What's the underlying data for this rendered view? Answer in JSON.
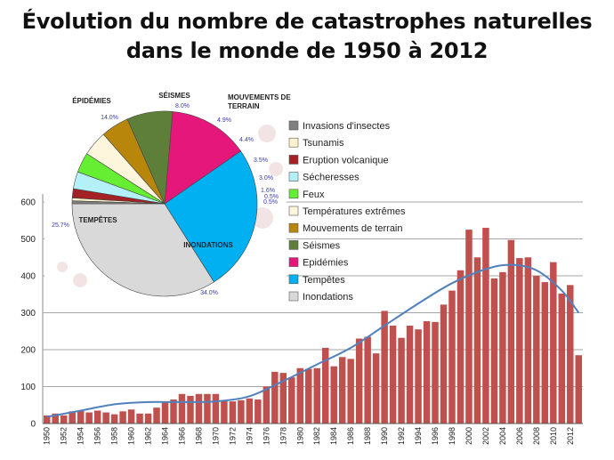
{
  "title_line1": "Évolution du nombre de catastrophes naturelles",
  "title_line2": "dans le monde de 1950 à 2012",
  "chart_data": [
    {
      "type": "bar",
      "ylim": [
        0,
        600
      ],
      "yticks": [
        0,
        100,
        200,
        300,
        400,
        500,
        600
      ],
      "grid": true,
      "bar_color": "#c0504d",
      "trend_color": "#4f81bd",
      "x": [
        1950,
        1951,
        1952,
        1953,
        1954,
        1955,
        1956,
        1957,
        1958,
        1959,
        1960,
        1961,
        1962,
        1963,
        1964,
        1965,
        1966,
        1967,
        1968,
        1969,
        1970,
        1971,
        1972,
        1973,
        1974,
        1975,
        1976,
        1977,
        1978,
        1979,
        1980,
        1981,
        1982,
        1983,
        1984,
        1985,
        1986,
        1987,
        1988,
        1989,
        1990,
        1991,
        1992,
        1993,
        1994,
        1995,
        1996,
        1997,
        1998,
        1999,
        2000,
        2001,
        2002,
        2003,
        2004,
        2005,
        2006,
        2007,
        2008,
        2009,
        2010,
        2011,
        2012,
        2013
      ],
      "xtick_labels": [
        "1950",
        "1952",
        "1954",
        "1956",
        "1958",
        "1960",
        "1962",
        "1964",
        "1966",
        "1968",
        "1970",
        "1972",
        "1974",
        "1976",
        "1978",
        "1980",
        "1982",
        "1984",
        "1986",
        "1988",
        "1990",
        "1992",
        "1994",
        "1996",
        "1998",
        "2000",
        "2002",
        "2004",
        "2006",
        "2008",
        "2010",
        "2012"
      ],
      "values": [
        22,
        27,
        22,
        33,
        35,
        30,
        35,
        30,
        25,
        33,
        38,
        27,
        27,
        43,
        60,
        65,
        80,
        75,
        80,
        80,
        80,
        63,
        60,
        63,
        68,
        65,
        100,
        140,
        137,
        125,
        150,
        148,
        150,
        205,
        155,
        180,
        175,
        230,
        235,
        190,
        305,
        265,
        232,
        265,
        255,
        277,
        275,
        322,
        360,
        415,
        525,
        450,
        530,
        393,
        410,
        497,
        448,
        450,
        400,
        383,
        437,
        352,
        375,
        185
      ],
      "trend": [
        [
          1950,
          18
        ],
        [
          1954,
          35
        ],
        [
          1958,
          52
        ],
        [
          1962,
          58
        ],
        [
          1966,
          58
        ],
        [
          1970,
          60
        ],
        [
          1974,
          74
        ],
        [
          1978,
          115
        ],
        [
          1982,
          160
        ],
        [
          1986,
          205
        ],
        [
          1990,
          265
        ],
        [
          1994,
          325
        ],
        [
          1998,
          380
        ],
        [
          2002,
          418
        ],
        [
          2005,
          430
        ],
        [
          2008,
          415
        ],
        [
          2011,
          360
        ],
        [
          2013,
          300
        ]
      ]
    },
    {
      "type": "pie",
      "slices": [
        {
          "label": "Inondations",
          "pie_label": "INONDATIONS",
          "value": 34.0,
          "display": "34.0%",
          "color": "#d9d9d9"
        },
        {
          "label": "Tempêtes",
          "pie_label": "TEMPÊTES",
          "value": 25.7,
          "display": "25.7%",
          "color": "#00b0f0"
        },
        {
          "label": "Epidémies",
          "pie_label": "ÉPIDÉMIES",
          "value": 14.0,
          "display": "14.0%",
          "color": "#e6177a"
        },
        {
          "label": "Séismes",
          "pie_label": "SÉISMES",
          "value": 8.0,
          "display": "8.0%",
          "color": "#5e7f3a"
        },
        {
          "label": "Mouvements de terrain",
          "pie_label": "MOUVEMENTS DE TERRAIN",
          "value": 4.9,
          "display": "4.9%",
          "color": "#b8860b"
        },
        {
          "label": "Températures extrêmes",
          "pie_label": "",
          "value": 4.4,
          "display": "4.4%",
          "color": "#fdf5dc"
        },
        {
          "label": "Feux",
          "pie_label": "",
          "value": 3.5,
          "display": "3.5%",
          "color": "#66ee33"
        },
        {
          "label": "Sécheresses",
          "pie_label": "",
          "value": 3.0,
          "display": "3.0%",
          "color": "#b3f0f7"
        },
        {
          "label": "Eruption volcanique",
          "pie_label": "",
          "value": 1.6,
          "display": "1.6%",
          "color": "#a32124"
        },
        {
          "label": "Tsunamis",
          "pie_label": "",
          "value": 0.5,
          "display": "0.5%",
          "color": "#fff2cc"
        },
        {
          "label": "Invasions d'insectes",
          "pie_label": "",
          "value": 0.5,
          "display": "0.5%",
          "color": "#7f7f7f"
        }
      ],
      "legend_order": [
        "Invasions d'insectes",
        "Tsunamis",
        "Eruption volcanique",
        "Sécheresses",
        "Feux",
        "Températures extrêmes",
        "Mouvements de terrain",
        "Séismes",
        "Epidémies",
        "Tempêtes",
        "Inondations"
      ]
    }
  ]
}
